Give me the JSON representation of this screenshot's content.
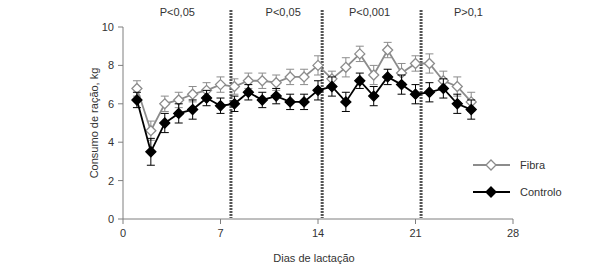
{
  "chart_data": {
    "type": "line",
    "x_label": "Dias de lactação",
    "y_label": "Consumo de ração, kg",
    "x": [
      1,
      2,
      3,
      4,
      5,
      6,
      7,
      8,
      9,
      10,
      11,
      12,
      13,
      14,
      15,
      16,
      17,
      18,
      19,
      20,
      21,
      22,
      23,
      24,
      25
    ],
    "series": [
      {
        "name": "Fibra",
        "color": "#8c8c8c",
        "marker": "diamond-open",
        "values": [
          6.8,
          4.6,
          6.0,
          6.2,
          6.5,
          6.7,
          7.0,
          6.9,
          7.2,
          7.2,
          7.1,
          7.4,
          7.4,
          8.0,
          7.3,
          7.9,
          8.6,
          7.5,
          8.8,
          7.6,
          8.1,
          8.1,
          7.2,
          6.9,
          6.1
        ],
        "errors": [
          0.4,
          0.5,
          0.4,
          0.4,
          0.4,
          0.4,
          0.4,
          0.4,
          0.4,
          0.4,
          0.4,
          0.4,
          0.4,
          0.5,
          0.4,
          0.5,
          0.4,
          0.5,
          0.4,
          0.5,
          0.4,
          0.5,
          0.5,
          0.5,
          0.5
        ]
      },
      {
        "name": "Controlo",
        "color": "#000000",
        "marker": "diamond",
        "values": [
          6.2,
          3.5,
          5.0,
          5.5,
          5.7,
          6.3,
          5.9,
          6.0,
          6.6,
          6.2,
          6.4,
          6.1,
          6.1,
          6.7,
          6.9,
          6.1,
          7.2,
          6.4,
          7.4,
          7.0,
          6.5,
          6.6,
          6.8,
          6.0,
          5.7
        ],
        "errors": [
          0.4,
          0.7,
          0.5,
          0.5,
          0.5,
          0.4,
          0.4,
          0.4,
          0.4,
          0.4,
          0.4,
          0.4,
          0.4,
          0.5,
          0.5,
          0.5,
          0.4,
          0.5,
          0.4,
          0.5,
          0.5,
          0.5,
          0.5,
          0.5,
          0.5
        ]
      }
    ],
    "xlim": [
      0,
      28
    ],
    "xticks": [
      0,
      7,
      14,
      21,
      28
    ],
    "ylim": [
      0,
      10
    ],
    "yticks": [
      0,
      2,
      4,
      6,
      8,
      10
    ],
    "reference_lines": [
      7.75,
      14.3,
      21.4
    ],
    "annotations": [
      {
        "text": "P<0,05",
        "x": 3.9
      },
      {
        "text": "P<0,05",
        "x": 11.5
      },
      {
        "text": "P<0,001",
        "x": 17.7
      },
      {
        "text": "P>0,1",
        "x": 24.8
      }
    ],
    "legend": "right",
    "grid": false
  }
}
